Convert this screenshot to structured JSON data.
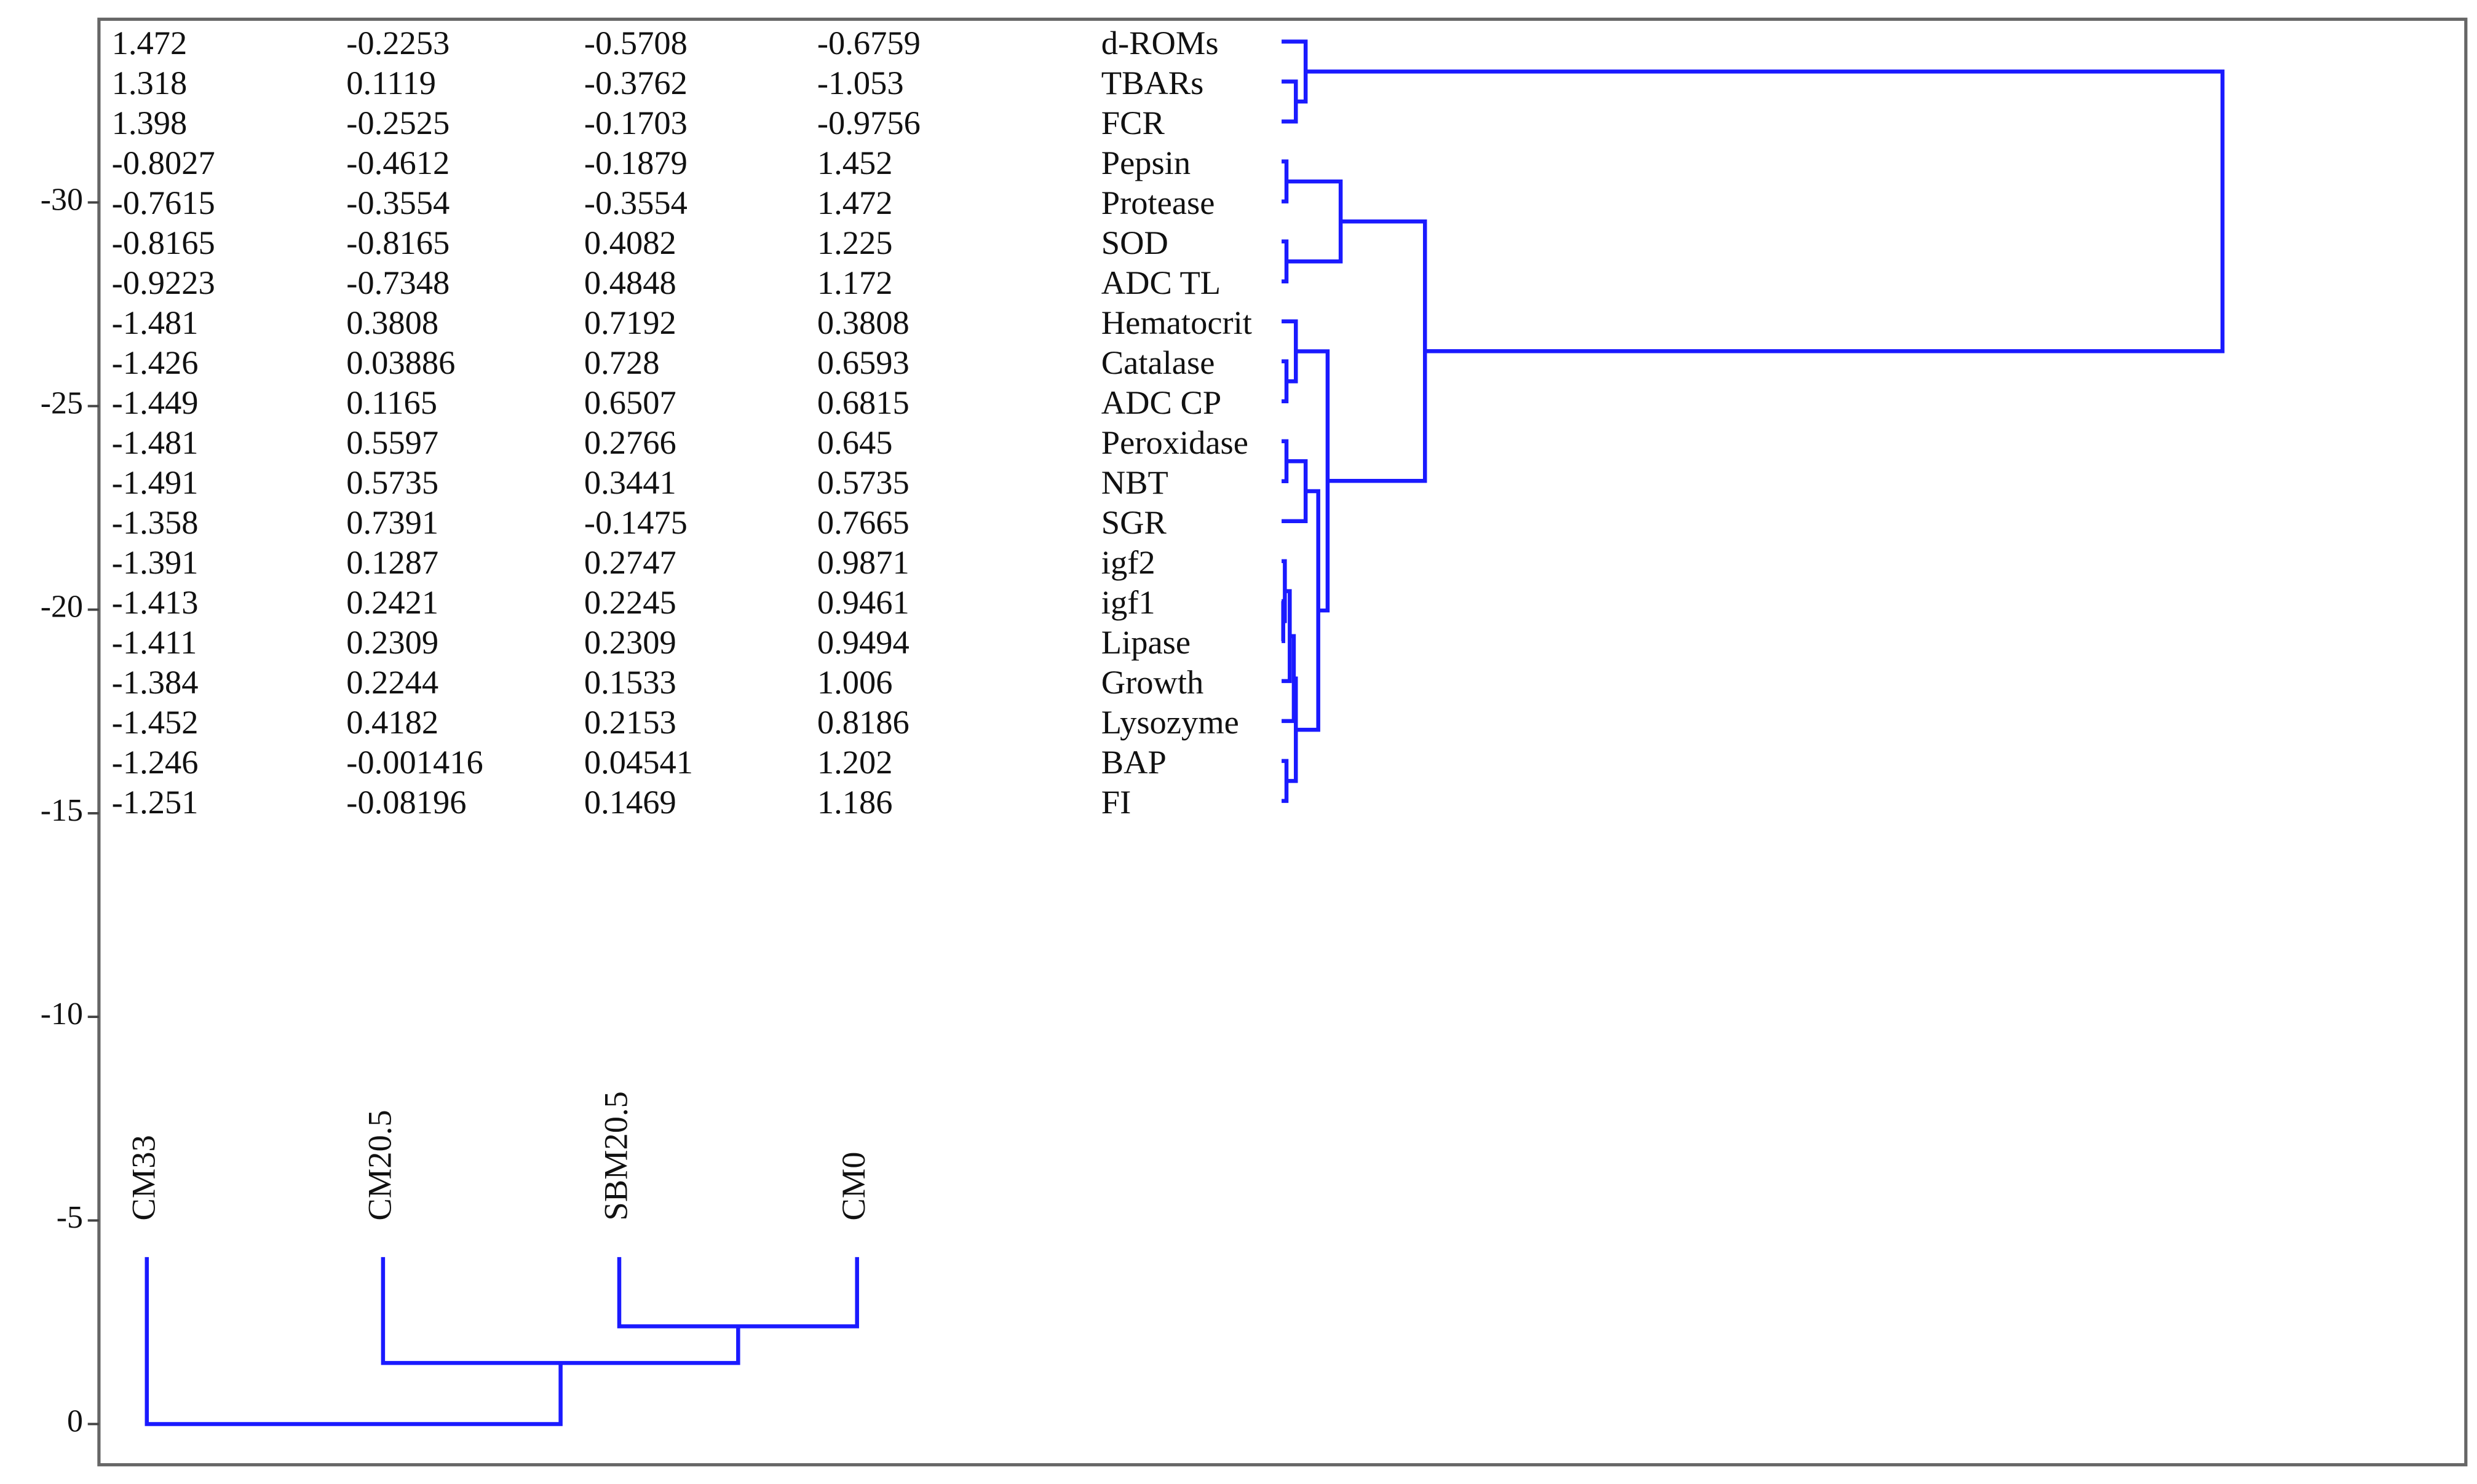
{
  "chart_data": {
    "type": "dendrogram",
    "rows": [
      "d-ROMs",
      "TBARs",
      "FCR",
      "Pepsin",
      "Protease",
      "SOD",
      "ADC TL",
      "Hematocrit",
      "Catalase",
      "ADC CP",
      "Peroxidase",
      "NBT",
      "SGR",
      "igf2",
      "igf1",
      "Lipase",
      "Growth",
      "Lysozyme",
      "BAP",
      "FI"
    ],
    "columns": [
      "CM33",
      "CM20.5",
      "SBM20.5",
      "CM0"
    ],
    "column_colors": [
      "#3a3aa8",
      "#33e833",
      "#d94848",
      "#00e0f0"
    ],
    "values": [
      [
        1.472,
        -0.2253,
        -0.5708,
        -0.6759
      ],
      [
        1.318,
        0.1119,
        -0.3762,
        -1.053
      ],
      [
        1.398,
        -0.2525,
        -0.1703,
        -0.9756
      ],
      [
        -0.8027,
        -0.4612,
        -0.1879,
        1.452
      ],
      [
        -0.7615,
        -0.3554,
        -0.3554,
        1.472
      ],
      [
        -0.8165,
        -0.8165,
        0.4082,
        1.225
      ],
      [
        -0.9223,
        -0.7348,
        0.4848,
        1.172
      ],
      [
        -1.481,
        0.3808,
        0.7192,
        0.3808
      ],
      [
        -1.426,
        0.03886,
        0.728,
        0.6593
      ],
      [
        -1.449,
        0.1165,
        0.6507,
        0.6815
      ],
      [
        -1.481,
        0.5597,
        0.2766,
        0.645
      ],
      [
        -1.491,
        0.5735,
        0.3441,
        0.5735
      ],
      [
        -1.358,
        0.7391,
        -0.1475,
        0.7665
      ],
      [
        -1.391,
        0.1287,
        0.2747,
        0.9871
      ],
      [
        -1.413,
        0.2421,
        0.2245,
        0.9461
      ],
      [
        -1.411,
        0.2309,
        0.2309,
        0.9494
      ],
      [
        -1.384,
        0.2244,
        0.1533,
        1.006
      ],
      [
        -1.452,
        0.4182,
        0.2153,
        0.8186
      ],
      [
        -1.246,
        -0.001416,
        0.04541,
        1.202
      ],
      [
        -1.251,
        -0.08196,
        0.1469,
        1.186
      ]
    ],
    "color": "#1a1aff",
    "ylim": [
      1,
      -34.5
    ],
    "yticks": [
      0,
      -5,
      -10,
      -15,
      -20,
      -25,
      -30
    ],
    "column_dendrogram": {
      "leaf_height": -4.1,
      "merges": [
        {
          "children": [
            2,
            3
          ],
          "height": -2.4
        },
        {
          "children": [
            1,
            4
          ],
          "height": -1.5
        },
        {
          "children": [
            0,
            5
          ],
          "height": 0
        }
      ]
    },
    "row_dendrogram": {
      "merges": [
        {
          "children": [
            1,
            2
          ],
          "height": 0.35
        },
        {
          "children": [
            0,
            20
          ],
          "height": 0.59
        },
        {
          "children": [
            3,
            4
          ],
          "height": 0.12
        },
        {
          "children": [
            5,
            6
          ],
          "height": 0.12
        },
        {
          "children": [
            22,
            23
          ],
          "height": 1.45
        },
        {
          "children": [
            8,
            9
          ],
          "height": 0.12
        },
        {
          "children": [
            7,
            25
          ],
          "height": 0.35
        },
        {
          "children": [
            10,
            11
          ],
          "height": 0.12
        },
        {
          "children": [
            27,
            12
          ],
          "height": 0.59
        },
        {
          "children": [
            14,
            15
          ],
          "height": 0.04
        },
        {
          "children": [
            13,
            29
          ],
          "height": 0.08
        },
        {
          "children": [
            30,
            16
          ],
          "height": 0.2
        },
        {
          "children": [
            31,
            17
          ],
          "height": 0.3
        },
        {
          "children": [
            18,
            19
          ],
          "height": 0.12
        },
        {
          "children": [
            32,
            33
          ],
          "height": 0.35
        },
        {
          "children": [
            28,
            34
          ],
          "height": 0.9
        },
        {
          "children": [
            26,
            35
          ],
          "height": 1.13
        },
        {
          "children": [
            24,
            36
          ],
          "height": 3.52
        },
        {
          "children": [
            21,
            37
          ],
          "height": 23.1
        }
      ]
    }
  }
}
